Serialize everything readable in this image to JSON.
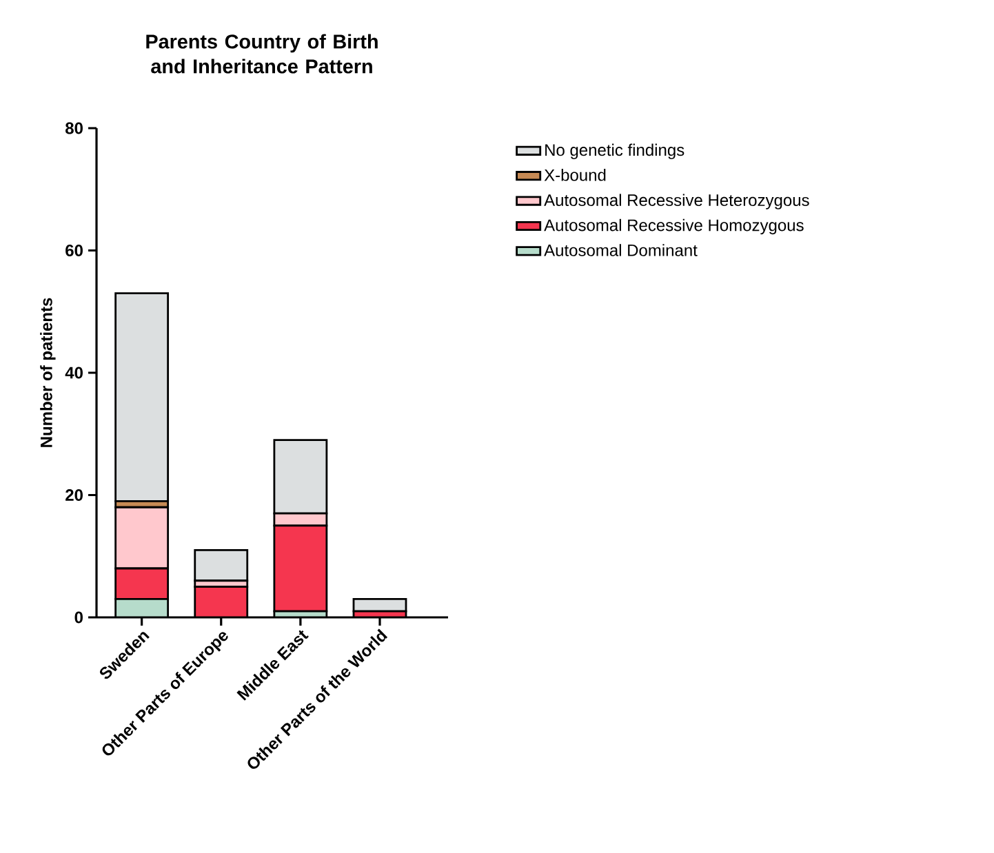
{
  "chart_data": {
    "type": "bar",
    "stacked": true,
    "title": "Parents Country of Birth and Inheritance Pattern",
    "ylabel": "Number of patients",
    "categories": [
      "Sweden",
      "Other Parts of Europe",
      "Middle East",
      "Other Parts of the World"
    ],
    "series": [
      {
        "name": "Autosomal Dominant",
        "color": "#b6dccb",
        "values": [
          3,
          0,
          1,
          0
        ]
      },
      {
        "name": "Autosomal Recessive Homozygous",
        "color": "#f5364f",
        "values": [
          5,
          5,
          14,
          1
        ]
      },
      {
        "name": "Autosomal Recessive Heterozygous",
        "color": "#ffc8cd",
        "values": [
          10,
          1,
          2,
          0
        ]
      },
      {
        "name": "X-bound",
        "color": "#c68a54",
        "values": [
          1,
          0,
          0,
          0
        ]
      },
      {
        "name": "No genetic findings",
        "color": "#dcdfe0",
        "values": [
          34,
          5,
          12,
          2
        ]
      }
    ],
    "ylim": [
      0,
      80
    ],
    "yticks": [
      0,
      20,
      40,
      60,
      80
    ],
    "legend": "right"
  }
}
